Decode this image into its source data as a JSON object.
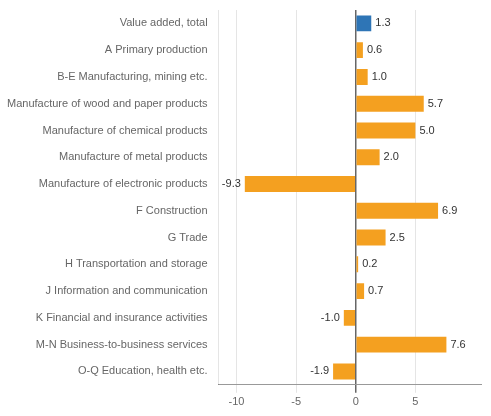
{
  "chart_data": {
    "type": "bar",
    "orientation": "horizontal",
    "categories": [
      "Value added, total",
      "A Primary production",
      "B-E Manufacturing, mining etc.",
      "Manufacture of wood and paper products",
      "Manufacture of chemical products",
      "Manufacture of metal products",
      "Manufacture of electronic products",
      "F Construction",
      "G Trade",
      "H Transportation and storage",
      "J Information and communication",
      "K Financial and insurance activities",
      "M-N Business-to-business services",
      "O-Q Education, health etc."
    ],
    "values": [
      1.3,
      0.6,
      1.0,
      5.7,
      5.0,
      2.0,
      -9.3,
      6.9,
      2.5,
      0.2,
      0.7,
      -1.0,
      7.6,
      -1.9
    ],
    "value_labels": [
      "1.3",
      "0.6",
      "1.0",
      "5.7",
      "5.0",
      "2.0",
      "-9.3",
      "6.9",
      "2.5",
      "0.2",
      "0.7",
      "-1.0",
      "7.6",
      "-1.9"
    ],
    "colors": [
      "#2e75b6",
      "#f4a020",
      "#f4a020",
      "#f4a020",
      "#f4a020",
      "#f4a020",
      "#f4a020",
      "#f4a020",
      "#f4a020",
      "#f4a020",
      "#f4a020",
      "#f4a020",
      "#f4a020",
      "#f4a020"
    ],
    "xlim": [
      -11.5,
      10.5
    ],
    "xticks": [
      -10,
      -5,
      0,
      5
    ],
    "grid": true,
    "data_labels": true
  }
}
